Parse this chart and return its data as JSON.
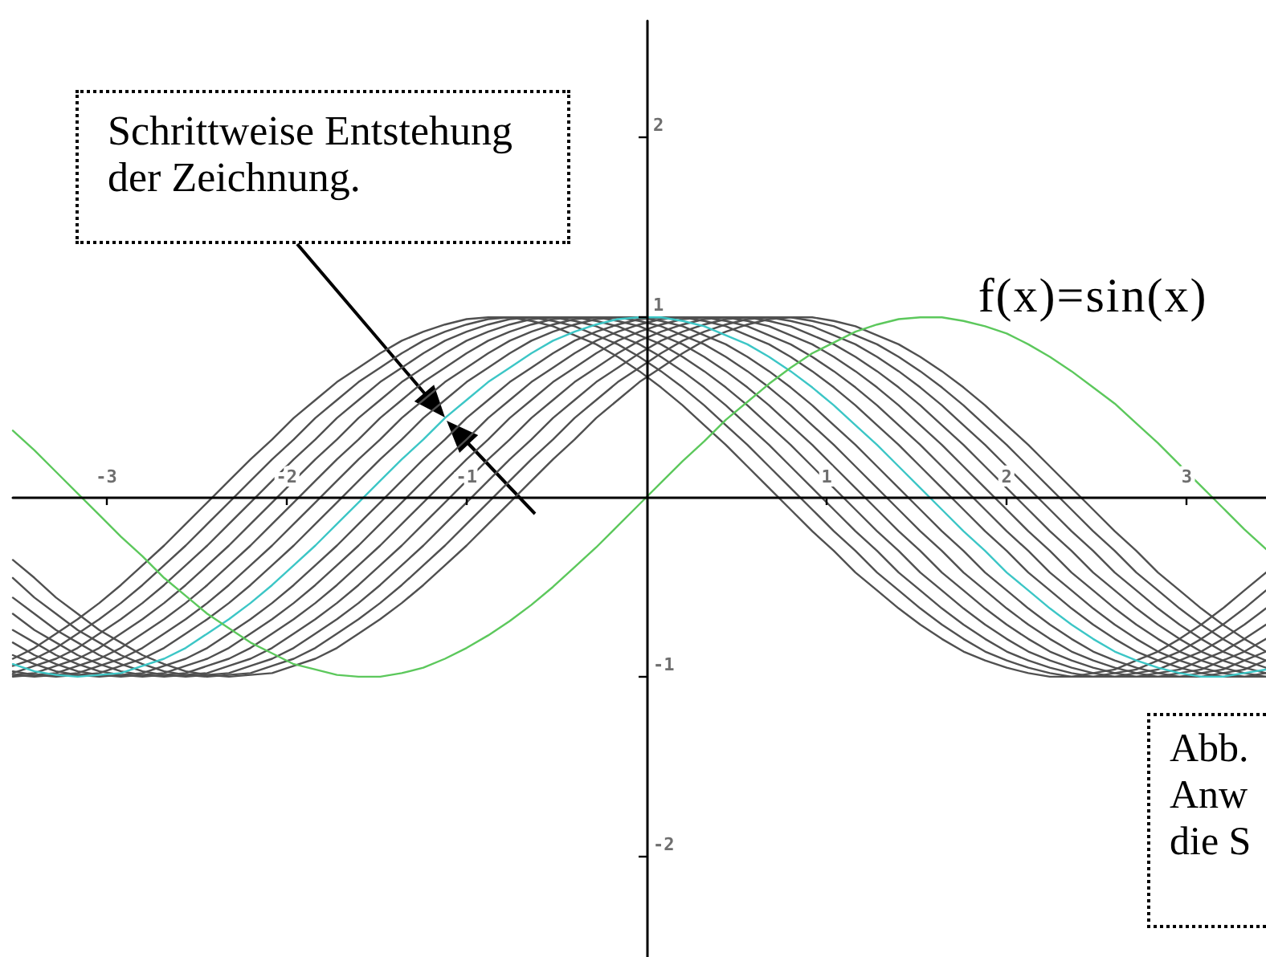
{
  "chart_data": {
    "type": "line",
    "x": [
      -3.52,
      -3.4,
      -3.28,
      -3.16,
      -3.04,
      -2.92,
      -2.8,
      -2.68,
      -2.56,
      -2.44,
      -2.32,
      -2.2,
      -2.08,
      -1.96,
      -1.84,
      -1.72,
      -1.6,
      -1.48,
      -1.36,
      -1.24,
      -1.12,
      -1,
      -0.88,
      -0.76,
      -0.64,
      -0.52,
      -0.4,
      -0.28,
      -0.16,
      -0.04,
      0.08,
      0.2,
      0.32,
      0.44,
      0.56,
      0.68,
      0.8,
      0.92,
      1.04,
      1.16,
      1.28,
      1.4,
      1.52,
      1.64,
      1.76,
      1.88,
      2,
      2.12,
      2.24,
      2.36,
      2.48,
      2.6,
      2.72,
      2.84,
      2.96,
      3.08,
      3.2,
      3.32,
      3.44
    ],
    "xlim": [
      -3.52,
      3.44
    ],
    "ylim": [
      -2.56,
      2.65
    ],
    "xticks": [
      -3,
      -2,
      -1,
      1,
      2,
      3
    ],
    "yticks": [
      -2,
      -1,
      1,
      2
    ],
    "marker": "none",
    "series": [
      {
        "color": "#505050",
        "values": [
          -0.35,
          -0.45,
          -0.56,
          -0.65,
          -0.74,
          -0.81,
          -0.88,
          -0.93,
          -0.97,
          -0.99,
          -1,
          -0.99,
          -0.98,
          -0.94,
          -0.9,
          -0.84,
          -0.76,
          -0.68,
          -0.59,
          -0.49,
          -0.38,
          -0.27,
          -0.15,
          -0.03,
          0.09,
          0.21,
          0.32,
          0.44,
          0.54,
          0.64,
          0.72,
          0.8,
          0.87,
          0.92,
          0.96,
          0.99,
          1,
          1,
          0.98,
          0.95,
          0.9,
          0.85,
          0.78,
          0.7,
          0.61,
          0.51,
          0.4,
          0.29,
          0.17,
          0.05,
          -0.07,
          -0.19,
          -0.3,
          -0.42,
          -0.52,
          -0.62,
          -0.71,
          -0.79,
          -0.86
        ]
      },
      {
        "color": "#505050",
        "values": [
          -0.45,
          -0.56,
          -0.65,
          -0.74,
          -0.81,
          -0.88,
          -0.93,
          -0.97,
          -0.99,
          -1,
          -0.99,
          -0.98,
          -0.94,
          -0.9,
          -0.84,
          -0.76,
          -0.68,
          -0.59,
          -0.49,
          -0.38,
          -0.27,
          -0.15,
          -0.03,
          0.09,
          0.21,
          0.32,
          0.44,
          0.54,
          0.64,
          0.72,
          0.8,
          0.87,
          0.92,
          0.96,
          0.99,
          1,
          1,
          0.98,
          0.95,
          0.9,
          0.85,
          0.78,
          0.7,
          0.61,
          0.51,
          0.4,
          0.29,
          0.17,
          0.05,
          -0.07,
          -0.19,
          -0.3,
          -0.42,
          -0.52,
          -0.62,
          -0.71,
          -0.79,
          -0.86,
          -0.91
        ]
      },
      {
        "color": "#505050",
        "values": [
          -0.56,
          -0.65,
          -0.74,
          -0.81,
          -0.88,
          -0.93,
          -0.97,
          -0.99,
          -1,
          -0.99,
          -0.98,
          -0.94,
          -0.9,
          -0.84,
          -0.76,
          -0.68,
          -0.59,
          -0.49,
          -0.38,
          -0.27,
          -0.15,
          -0.03,
          0.09,
          0.21,
          0.32,
          0.44,
          0.54,
          0.64,
          0.72,
          0.8,
          0.87,
          0.92,
          0.96,
          0.99,
          1,
          1,
          0.98,
          0.95,
          0.9,
          0.85,
          0.78,
          0.7,
          0.61,
          0.51,
          0.4,
          0.29,
          0.17,
          0.05,
          -0.07,
          -0.19,
          -0.3,
          -0.42,
          -0.52,
          -0.62,
          -0.71,
          -0.79,
          -0.86,
          -0.91,
          -0.95
        ]
      },
      {
        "color": "#505050",
        "values": [
          -0.65,
          -0.74,
          -0.81,
          -0.88,
          -0.93,
          -0.97,
          -0.99,
          -1,
          -0.99,
          -0.98,
          -0.94,
          -0.9,
          -0.84,
          -0.76,
          -0.68,
          -0.59,
          -0.49,
          -0.38,
          -0.27,
          -0.15,
          -0.03,
          0.09,
          0.21,
          0.32,
          0.44,
          0.54,
          0.64,
          0.72,
          0.8,
          0.87,
          0.92,
          0.96,
          0.99,
          1,
          1,
          0.98,
          0.95,
          0.9,
          0.85,
          0.78,
          0.7,
          0.61,
          0.51,
          0.4,
          0.29,
          0.17,
          0.05,
          -0.07,
          -0.19,
          -0.3,
          -0.42,
          -0.52,
          -0.62,
          -0.71,
          -0.79,
          -0.86,
          -0.91,
          -0.95,
          -0.98
        ]
      },
      {
        "color": "#505050",
        "values": [
          -0.74,
          -0.81,
          -0.88,
          -0.93,
          -0.97,
          -0.99,
          -1,
          -0.99,
          -0.98,
          -0.94,
          -0.9,
          -0.84,
          -0.76,
          -0.68,
          -0.59,
          -0.49,
          -0.38,
          -0.27,
          -0.15,
          -0.03,
          0.09,
          0.21,
          0.32,
          0.44,
          0.54,
          0.64,
          0.72,
          0.8,
          0.87,
          0.92,
          0.96,
          0.99,
          1,
          1,
          0.98,
          0.95,
          0.9,
          0.85,
          0.78,
          0.7,
          0.61,
          0.51,
          0.4,
          0.29,
          0.17,
          0.05,
          -0.07,
          -0.19,
          -0.3,
          -0.42,
          -0.52,
          -0.62,
          -0.71,
          -0.79,
          -0.86,
          -0.91,
          -0.95,
          -0.98,
          -1
        ]
      },
      {
        "color": "#505050",
        "values": [
          -0.81,
          -0.88,
          -0.93,
          -0.97,
          -0.99,
          -1,
          -0.99,
          -0.98,
          -0.94,
          -0.9,
          -0.84,
          -0.76,
          -0.68,
          -0.59,
          -0.49,
          -0.38,
          -0.27,
          -0.15,
          -0.03,
          0.09,
          0.21,
          0.32,
          0.44,
          0.54,
          0.64,
          0.72,
          0.8,
          0.87,
          0.92,
          0.96,
          0.99,
          1,
          1,
          0.98,
          0.95,
          0.9,
          0.85,
          0.78,
          0.7,
          0.61,
          0.51,
          0.4,
          0.29,
          0.17,
          0.05,
          -0.07,
          -0.19,
          -0.3,
          -0.42,
          -0.52,
          -0.62,
          -0.71,
          -0.79,
          -0.86,
          -0.91,
          -0.95,
          -0.98,
          -1,
          -1
        ]
      },
      {
        "color": "#505050",
        "values": [
          -0.88,
          -0.93,
          -0.97,
          -0.99,
          -1,
          -0.99,
          -0.98,
          -0.94,
          -0.9,
          -0.84,
          -0.76,
          -0.68,
          -0.59,
          -0.49,
          -0.38,
          -0.27,
          -0.15,
          -0.03,
          0.09,
          0.21,
          0.32,
          0.44,
          0.54,
          0.64,
          0.72,
          0.8,
          0.87,
          0.92,
          0.96,
          0.99,
          1,
          1,
          0.98,
          0.95,
          0.9,
          0.85,
          0.78,
          0.7,
          0.61,
          0.51,
          0.4,
          0.29,
          0.17,
          0.05,
          -0.07,
          -0.19,
          -0.3,
          -0.42,
          -0.52,
          -0.62,
          -0.71,
          -0.79,
          -0.86,
          -0.91,
          -0.95,
          -0.98,
          -1,
          -1,
          -0.98
        ]
      },
      {
        "color": "#505050",
        "values": [
          -0.97,
          -0.99,
          -1,
          -0.99,
          -0.98,
          -0.94,
          -0.9,
          -0.84,
          -0.76,
          -0.68,
          -0.59,
          -0.49,
          -0.38,
          -0.27,
          -0.15,
          -0.03,
          0.09,
          0.21,
          0.32,
          0.44,
          0.54,
          0.64,
          0.72,
          0.8,
          0.87,
          0.92,
          0.96,
          0.99,
          1,
          1,
          0.98,
          0.95,
          0.9,
          0.85,
          0.78,
          0.7,
          0.61,
          0.51,
          0.4,
          0.29,
          0.17,
          0.05,
          -0.07,
          -0.19,
          -0.3,
          -0.42,
          -0.52,
          -0.62,
          -0.71,
          -0.79,
          -0.86,
          -0.91,
          -0.95,
          -0.98,
          -1,
          -1,
          -0.98,
          -0.96,
          -0.91
        ]
      },
      {
        "color": "#505050",
        "values": [
          -0.99,
          -1,
          -0.99,
          -0.98,
          -0.94,
          -0.9,
          -0.84,
          -0.76,
          -0.68,
          -0.59,
          -0.49,
          -0.38,
          -0.27,
          -0.15,
          -0.03,
          0.09,
          0.21,
          0.32,
          0.44,
          0.54,
          0.64,
          0.72,
          0.8,
          0.87,
          0.92,
          0.96,
          0.99,
          1,
          1,
          0.98,
          0.95,
          0.9,
          0.85,
          0.78,
          0.7,
          0.61,
          0.51,
          0.4,
          0.29,
          0.17,
          0.05,
          -0.07,
          -0.19,
          -0.3,
          -0.42,
          -0.52,
          -0.62,
          -0.71,
          -0.79,
          -0.86,
          -0.91,
          -0.95,
          -0.98,
          -1,
          -1,
          -0.98,
          -0.96,
          -0.91,
          -0.86
        ]
      },
      {
        "color": "#505050",
        "values": [
          -1,
          -0.99,
          -0.98,
          -0.94,
          -0.9,
          -0.84,
          -0.76,
          -0.68,
          -0.59,
          -0.49,
          -0.38,
          -0.27,
          -0.15,
          -0.03,
          0.09,
          0.21,
          0.32,
          0.44,
          0.54,
          0.64,
          0.72,
          0.8,
          0.87,
          0.92,
          0.96,
          0.99,
          1,
          1,
          0.98,
          0.95,
          0.9,
          0.85,
          0.78,
          0.7,
          0.61,
          0.51,
          0.4,
          0.29,
          0.17,
          0.05,
          -0.07,
          -0.19,
          -0.3,
          -0.42,
          -0.52,
          -0.62,
          -0.71,
          -0.79,
          -0.86,
          -0.91,
          -0.95,
          -0.98,
          -1,
          -1,
          -0.98,
          -0.96,
          -0.91,
          -0.86,
          -0.79
        ]
      },
      {
        "color": "#505050",
        "values": [
          -0.99,
          -0.98,
          -0.94,
          -0.9,
          -0.84,
          -0.76,
          -0.68,
          -0.59,
          -0.49,
          -0.38,
          -0.27,
          -0.15,
          -0.03,
          0.09,
          0.21,
          0.32,
          0.44,
          0.54,
          0.64,
          0.72,
          0.8,
          0.87,
          0.92,
          0.96,
          0.99,
          1,
          1,
          0.98,
          0.95,
          0.9,
          0.85,
          0.78,
          0.7,
          0.61,
          0.51,
          0.4,
          0.29,
          0.17,
          0.05,
          -0.07,
          -0.19,
          -0.3,
          -0.42,
          -0.52,
          -0.62,
          -0.71,
          -0.79,
          -0.86,
          -0.91,
          -0.95,
          -0.98,
          -1,
          -1,
          -0.98,
          -0.96,
          -0.91,
          -0.86,
          -0.79,
          -0.71
        ]
      },
      {
        "color": "#505050",
        "values": [
          -0.98,
          -0.94,
          -0.9,
          -0.84,
          -0.76,
          -0.68,
          -0.59,
          -0.49,
          -0.38,
          -0.27,
          -0.15,
          -0.03,
          0.09,
          0.21,
          0.32,
          0.44,
          0.54,
          0.64,
          0.72,
          0.8,
          0.87,
          0.92,
          0.96,
          0.99,
          1,
          1,
          0.98,
          0.95,
          0.9,
          0.85,
          0.78,
          0.7,
          0.61,
          0.51,
          0.4,
          0.29,
          0.17,
          0.05,
          -0.07,
          -0.19,
          -0.3,
          -0.42,
          -0.52,
          -0.62,
          -0.71,
          -0.79,
          -0.86,
          -0.91,
          -0.95,
          -0.98,
          -1,
          -1,
          -0.98,
          -0.96,
          -0.91,
          -0.86,
          -0.79,
          -0.71,
          -0.62
        ]
      },
      {
        "color": "#505050",
        "values": [
          -0.94,
          -0.9,
          -0.84,
          -0.76,
          -0.68,
          -0.59,
          -0.49,
          -0.38,
          -0.27,
          -0.15,
          -0.03,
          0.09,
          0.21,
          0.32,
          0.44,
          0.54,
          0.64,
          0.72,
          0.8,
          0.87,
          0.92,
          0.96,
          0.99,
          1,
          1,
          0.98,
          0.95,
          0.9,
          0.85,
          0.78,
          0.7,
          0.61,
          0.51,
          0.4,
          0.29,
          0.17,
          0.05,
          -0.07,
          -0.19,
          -0.3,
          -0.42,
          -0.52,
          -0.62,
          -0.71,
          -0.79,
          -0.86,
          -0.91,
          -0.95,
          -0.98,
          -1,
          -1,
          -0.98,
          -0.96,
          -0.91,
          -0.86,
          -0.79,
          -0.71,
          -0.62,
          -0.52
        ]
      },
      {
        "color": "#505050",
        "values": [
          -0.9,
          -0.84,
          -0.76,
          -0.68,
          -0.59,
          -0.49,
          -0.38,
          -0.27,
          -0.15,
          -0.03,
          0.09,
          0.21,
          0.32,
          0.44,
          0.54,
          0.64,
          0.72,
          0.8,
          0.87,
          0.92,
          0.96,
          0.99,
          1,
          1,
          0.98,
          0.95,
          0.9,
          0.85,
          0.78,
          0.7,
          0.61,
          0.51,
          0.4,
          0.29,
          0.17,
          0.05,
          -0.07,
          -0.19,
          -0.3,
          -0.42,
          -0.52,
          -0.62,
          -0.71,
          -0.79,
          -0.86,
          -0.91,
          -0.95,
          -0.98,
          -1,
          -1,
          -0.98,
          -0.96,
          -0.91,
          -0.86,
          -0.79,
          -0.71,
          -0.62,
          -0.52,
          -0.42
        ]
      },
      {
        "color": "#3cc6c6",
        "values": [
          -0.93,
          -0.97,
          -0.99,
          -1,
          -0.99,
          -0.98,
          -0.94,
          -0.9,
          -0.84,
          -0.76,
          -0.68,
          -0.59,
          -0.49,
          -0.38,
          -0.27,
          -0.15,
          -0.03,
          0.09,
          0.21,
          0.32,
          0.44,
          0.54,
          0.64,
          0.72,
          0.8,
          0.87,
          0.92,
          0.96,
          0.99,
          1,
          1,
          0.98,
          0.95,
          0.9,
          0.85,
          0.78,
          0.7,
          0.61,
          0.51,
          0.4,
          0.29,
          0.17,
          0.05,
          -0.07,
          -0.19,
          -0.3,
          -0.42,
          -0.52,
          -0.62,
          -0.71,
          -0.79,
          -0.86,
          -0.91,
          -0.95,
          -0.98,
          -1,
          -1,
          -0.98,
          -0.96
        ]
      },
      {
        "name": "f(x)=sin(x)",
        "color": "#5cc85c",
        "values": [
          0.37,
          0.26,
          0.14,
          0.02,
          -0.1,
          -0.22,
          -0.33,
          -0.45,
          -0.55,
          -0.65,
          -0.73,
          -0.81,
          -0.87,
          -0.93,
          -0.96,
          -0.99,
          -1,
          -1,
          -0.98,
          -0.95,
          -0.9,
          -0.84,
          -0.77,
          -0.69,
          -0.6,
          -0.5,
          -0.39,
          -0.28,
          -0.16,
          -0.04,
          0.08,
          0.2,
          0.31,
          0.43,
          0.53,
          0.63,
          0.72,
          0.8,
          0.86,
          0.92,
          0.96,
          0.99,
          1,
          1,
          0.98,
          0.95,
          0.91,
          0.85,
          0.78,
          0.7,
          0.61,
          0.52,
          0.41,
          0.3,
          0.18,
          0.06,
          -0.06,
          -0.18,
          -0.29
        ]
      }
    ],
    "annotations": [
      "Schrittweise Entstehung der Zeichnung.",
      "Abb.\nAnw\ndie S"
    ]
  }
}
